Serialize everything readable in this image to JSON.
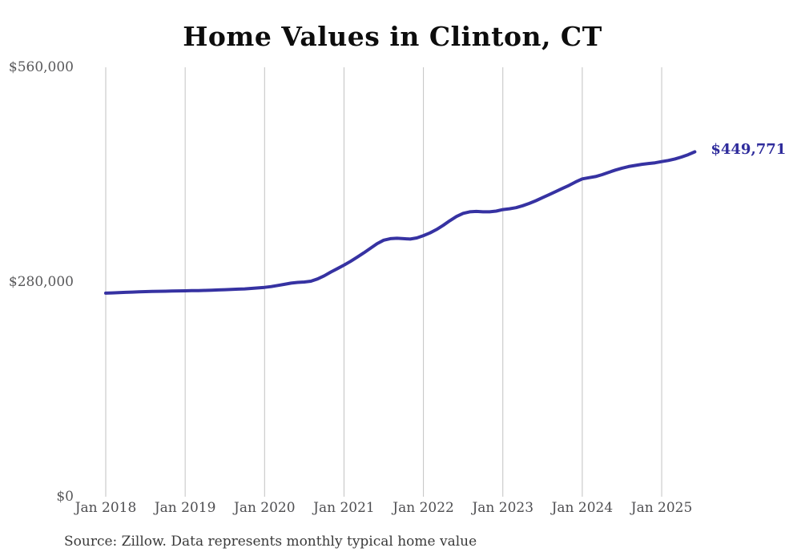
{
  "chart": {
    "title": "Home Values in Clinton, CT",
    "end_label": "$449,771",
    "source": "Source: Zillow. Data represents monthly typical home value"
  },
  "colors": {
    "line": "#3632a2",
    "grid": "#c2c2c2",
    "title_text": "#0d0d0d",
    "tick_text": "#58585a",
    "source_text": "#3a3a3a",
    "end_label_text": "#2f2c9c"
  },
  "chart_data": {
    "type": "line",
    "title": "Home Values in Clinton, CT",
    "xlabel": "",
    "ylabel": "",
    "x_frequency": "monthly",
    "x_start": "2018-01",
    "x_end": "2025-06",
    "x_tick_labels": [
      "Jan 2018",
      "Jan 2019",
      "Jan 2020",
      "Jan 2021",
      "Jan 2022",
      "Jan 2023",
      "Jan 2024",
      "Jan 2025"
    ],
    "y_ticks": [
      {
        "label": "$0",
        "value": 0
      },
      {
        "label": "$280,000",
        "value": 280000
      },
      {
        "label": "$560,000",
        "value": 560000
      }
    ],
    "ylim": [
      0,
      560000
    ],
    "grid": "vertical-only",
    "legend": "none",
    "end_value": 449771,
    "end_value_label": "$449,771",
    "series": [
      {
        "name": "Typical home value",
        "values": [
          265500,
          265800,
          266100,
          266500,
          266800,
          267200,
          267500,
          267700,
          267900,
          268000,
          268200,
          268400,
          268500,
          268700,
          268800,
          269000,
          269300,
          269700,
          270000,
          270300,
          270700,
          271000,
          271600,
          272300,
          273000,
          274000,
          275500,
          277000,
          278500,
          279500,
          280000,
          281000,
          284000,
          288000,
          293000,
          297500,
          302000,
          307000,
          312500,
          318000,
          324000,
          330000,
          334500,
          336500,
          337000,
          336500,
          336000,
          337500,
          340500,
          344000,
          348500,
          354000,
          360000,
          365500,
          369500,
          371500,
          372000,
          371500,
          371500,
          372500,
          374500,
          375500,
          377000,
          379500,
          382500,
          386000,
          390000,
          394000,
          398000,
          402000,
          406000,
          410500,
          414500,
          416000,
          417500,
          420000,
          423000,
          426000,
          428500,
          430500,
          432000,
          433500,
          434500,
          435500,
          437000,
          438500,
          440500,
          443000,
          446000,
          449771
        ]
      }
    ]
  }
}
